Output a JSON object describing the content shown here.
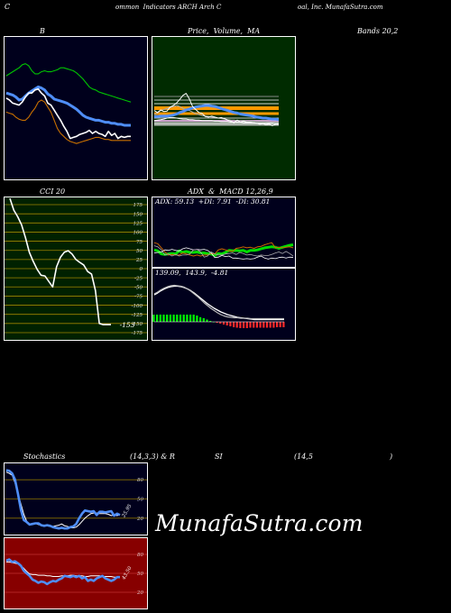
{
  "header": {
    "part1": "C",
    "part2": "ommon  Indicators ARCH Arch C",
    "part3": "oal, Inc. MunafaSutra.com"
  },
  "titles": {
    "b": "B",
    "price": "Price,  Volume,  MA",
    "bands": "Bands 20,2",
    "cci": "CCI 20",
    "adx": "ADX  &  MACD 12,26,9",
    "stoch_a": "Stochastics",
    "stoch_b": "(14,3,3) & R",
    "stoch_c": "SI",
    "stoch_d": "(14,5",
    "stoch_e": ")"
  },
  "adx_readout": "ADX: 59.13  +DI: 7.91  -DI: 30.81",
  "macd_readout": "139.09,  143.9,  -4.81",
  "cci_label": "-153",
  "stoch_label": "25.95",
  "rsi_label": "43.50",
  "watermark": "MunafaSutra.com",
  "colors": {
    "bg": "#000000",
    "bb_panel": "#00001c",
    "price_panel": "#002b00",
    "cci_panel": "#002100",
    "macd_panel": "#00001c",
    "rsi_panel": "#870000",
    "green_line": "#00c400",
    "blue_line": "#4f8ef7",
    "orange_line": "#c87000"
  },
  "chart_data": [
    {
      "type": "line",
      "name": "bollinger",
      "x": [
        1,
        2,
        3,
        4,
        5,
        6,
        7,
        8,
        9,
        10,
        11,
        12,
        13,
        14,
        15,
        16,
        17,
        18,
        19,
        20,
        21,
        22,
        23,
        24,
        25,
        26,
        27,
        28,
        29,
        30,
        31,
        32,
        33,
        34,
        35,
        36,
        37,
        38,
        39,
        40
      ],
      "series": [
        {
          "values": [
            74,
            76,
            78,
            80,
            82,
            85,
            86,
            84,
            79,
            76,
            76,
            78,
            79,
            78,
            78,
            79,
            80,
            82,
            82,
            81,
            80,
            79,
            77,
            74,
            71,
            67,
            63,
            61,
            60,
            58,
            57,
            56,
            55,
            54,
            53,
            52,
            51,
            50,
            49,
            48
          ]
        },
        {
          "values": [
            57,
            56,
            55,
            53,
            50,
            51,
            54,
            57,
            59,
            61,
            63,
            62,
            60,
            56,
            54,
            51,
            50,
            49,
            48,
            47,
            45,
            43,
            41,
            38,
            35,
            33,
            32,
            31,
            30,
            30,
            29,
            28,
            28,
            27,
            27,
            26,
            26,
            25,
            25,
            25
          ]
        },
        {
          "values": [
            38,
            37,
            36,
            33,
            31,
            30,
            30,
            33,
            38,
            42,
            48,
            50,
            48,
            43,
            38,
            30,
            22,
            17,
            14,
            11,
            9,
            8,
            7,
            8,
            9,
            10,
            11,
            12,
            13,
            13,
            12,
            11,
            11,
            10,
            10,
            10,
            10,
            10,
            10,
            10
          ]
        },
        {
          "values": [
            52,
            50,
            47,
            46,
            45,
            48,
            53,
            57,
            57,
            60,
            61,
            57,
            54,
            47,
            45,
            40,
            35,
            30,
            24,
            19,
            12,
            13,
            14,
            16,
            17,
            18,
            20,
            17,
            19,
            17,
            16,
            14,
            19,
            15,
            17,
            12,
            14,
            13,
            14,
            14
          ]
        }
      ],
      "ylim": [
        0,
        100
      ]
    },
    {
      "type": "line",
      "name": "price-volume-ma",
      "x": [
        1,
        2,
        3,
        4,
        5,
        6,
        7,
        8,
        9,
        10,
        11,
        12,
        13,
        14,
        15,
        16,
        17,
        18,
        19,
        20,
        21,
        22,
        23,
        24,
        25,
        26,
        27,
        28,
        29,
        30,
        31,
        32,
        33,
        34,
        35,
        36,
        37,
        38,
        39,
        40
      ],
      "series": [
        {
          "values": [
            32,
            35,
            40,
            42,
            44,
            46,
            48,
            50,
            48,
            44,
            42,
            40,
            37,
            34,
            32,
            30,
            29,
            28,
            27,
            26,
            25,
            24,
            23,
            22,
            21,
            21,
            20,
            20,
            20,
            19,
            19,
            19,
            18,
            18,
            18,
            18,
            17,
            17,
            17,
            17
          ]
        },
        {
          "values": [
            28,
            28,
            29,
            29,
            29,
            30,
            31,
            33,
            36,
            38,
            41,
            43,
            45,
            47,
            48,
            49,
            50,
            50,
            49,
            48,
            46,
            44,
            42,
            40,
            38,
            36,
            35,
            33,
            32,
            31,
            30,
            29,
            27,
            26,
            25,
            25,
            24,
            23,
            23,
            22
          ]
        },
        {
          "values": [
            20,
            21,
            22,
            23,
            25,
            26,
            26,
            25,
            24,
            23,
            23,
            22,
            22,
            21,
            21,
            20,
            20,
            20,
            20,
            19,
            19,
            18,
            18,
            18,
            17,
            17,
            17,
            17,
            16,
            16,
            16,
            16,
            15,
            15,
            15,
            15,
            15,
            15,
            14,
            14
          ]
        },
        {
          "values": [
            40,
            36,
            41,
            38,
            39,
            47,
            50,
            55,
            62,
            70,
            74,
            63,
            48,
            42,
            36,
            34,
            28,
            27,
            29,
            27,
            25,
            26,
            24,
            21,
            19,
            16,
            21,
            17,
            19,
            17,
            17,
            16,
            15,
            13,
            14,
            12,
            13,
            10,
            13,
            13
          ]
        }
      ],
      "ylim": [
        0,
        100
      ]
    },
    {
      "type": "line",
      "name": "cci",
      "x": [
        1,
        2,
        3,
        4,
        5,
        6,
        7,
        8,
        9,
        10,
        11,
        12,
        13,
        14,
        15,
        16,
        17,
        18,
        19,
        20,
        21,
        22,
        23,
        24,
        25,
        26,
        27
      ],
      "values": [
        192,
        160,
        142,
        120,
        85,
        45,
        20,
        -2,
        -18,
        -20,
        -35,
        -50,
        5,
        31,
        45,
        49,
        40,
        25,
        17,
        10,
        -8,
        -15,
        -60,
        -150,
        -153,
        -153,
        -153
      ],
      "yticks": [
        175,
        150,
        125,
        100,
        75,
        50,
        25,
        0,
        -25,
        -50,
        -75,
        -100,
        -125,
        -150,
        -175
      ],
      "ylim": [
        -180,
        180
      ]
    },
    {
      "type": "line",
      "name": "adx-di",
      "x": [
        1,
        2,
        3,
        4,
        5,
        6,
        7,
        8,
        9,
        10,
        11,
        12,
        13,
        14,
        15,
        16,
        17,
        18,
        19,
        20,
        21,
        22,
        23,
        24,
        25,
        26,
        27,
        28,
        29,
        30,
        31,
        32,
        33,
        34,
        35,
        36,
        37,
        38,
        39,
        40
      ],
      "series": [
        {
          "values": [
            26,
            24,
            18,
            17,
            18,
            19,
            18,
            24,
            21,
            23,
            21,
            21,
            22,
            20,
            20,
            19,
            18,
            15,
            19,
            18,
            21,
            25,
            24,
            25,
            24,
            25,
            22,
            25,
            25,
            26,
            28,
            30,
            31,
            32,
            31,
            29,
            31,
            33,
            35,
            36
          ]
        },
        {
          "values": [
            40,
            38,
            30,
            22,
            16,
            17,
            16,
            16,
            20,
            18,
            16,
            14,
            16,
            14,
            16,
            16,
            19,
            18,
            26,
            28,
            26,
            24,
            23,
            29,
            30,
            32,
            30,
            31,
            29,
            32,
            33,
            36,
            38,
            40,
            30,
            31,
            30,
            31,
            32,
            30
          ]
        },
        {
          "values": [
            20,
            21,
            22,
            26,
            25,
            27,
            25,
            24,
            28,
            30,
            28,
            26,
            27,
            26,
            27,
            25,
            20,
            11,
            12,
            15,
            13,
            14,
            10,
            10,
            9,
            8,
            9,
            8,
            9,
            12,
            14,
            10,
            8,
            10,
            9,
            11,
            12,
            10,
            12,
            11
          ]
        },
        {
          "values": [
            34,
            32,
            26,
            16,
            18,
            14,
            17,
            14,
            16,
            16,
            18,
            26,
            27,
            22,
            12,
            14,
            22,
            18,
            16,
            16,
            18,
            19,
            20,
            17,
            21,
            19,
            16,
            17,
            15,
            14,
            16,
            15,
            15,
            17,
            20,
            22,
            19,
            23,
            19,
            14
          ]
        }
      ],
      "ylim": [
        0,
        100
      ]
    },
    {
      "type": "line",
      "name": "macd",
      "x": [
        1,
        2,
        3,
        4,
        5,
        6,
        7,
        8,
        9,
        10,
        11,
        12,
        13,
        14,
        15,
        16,
        17,
        18,
        19,
        20,
        21,
        22,
        23,
        24,
        25,
        26,
        27,
        28,
        29,
        30,
        31,
        32,
        33,
        34,
        35,
        36,
        37,
        38,
        39,
        40
      ],
      "series": [
        {
          "values": [
            60,
            64,
            69,
            73,
            76,
            78,
            79,
            79,
            78,
            76,
            73,
            69,
            64,
            58,
            52,
            46,
            40,
            35,
            30,
            26,
            22,
            19,
            16,
            14,
            12,
            10,
            9,
            8,
            7,
            6,
            5,
            5,
            5,
            5,
            5,
            5,
            5,
            5,
            5,
            5
          ]
        },
        {
          "values": [
            62,
            66,
            71,
            75,
            78,
            80,
            81,
            80,
            79,
            77,
            73,
            68,
            62,
            56,
            49,
            42,
            36,
            30,
            25,
            20,
            16,
            13,
            11,
            10,
            9,
            9,
            8,
            8,
            8,
            7,
            7,
            7,
            7,
            7,
            7,
            7,
            7,
            7,
            7,
            7
          ]
        },
        {
          "values": [
            16,
            16,
            16,
            16,
            16,
            16,
            16,
            16,
            16,
            16,
            16,
            16,
            16,
            14,
            10,
            8,
            5,
            2,
            0,
            -2,
            -4,
            -6,
            -8,
            -10,
            -12,
            -13,
            -14,
            -14,
            -14,
            -13,
            -13,
            -13,
            -13,
            -13,
            -13,
            -13,
            -13,
            -12,
            -12,
            -12
          ]
        }
      ],
      "ylim": [
        -20,
        90
      ]
    },
    {
      "type": "line",
      "name": "stochastics",
      "x": [
        1,
        2,
        3,
        4,
        5,
        6,
        7,
        8,
        9,
        10,
        11,
        12,
        13,
        14,
        15,
        16,
        17,
        18,
        19,
        20,
        21,
        22,
        23,
        24,
        25,
        26,
        27,
        28,
        29,
        30,
        31,
        32,
        33,
        34,
        35,
        36,
        37,
        38,
        39,
        40
      ],
      "series": [
        {
          "values": [
            92,
            90,
            87,
            75,
            58,
            42,
            26,
            15,
            11,
            11,
            12,
            10,
            9,
            9,
            8,
            7,
            7,
            8,
            9,
            11,
            8,
            7,
            5,
            5,
            6,
            10,
            15,
            20,
            24,
            27,
            28,
            28,
            27,
            27,
            27,
            26,
            24,
            25,
            24,
            26
          ]
        },
        {
          "values": [
            95,
            94,
            90,
            80,
            58,
            33,
            17,
            14,
            10,
            11,
            12,
            12,
            9,
            8,
            9,
            8,
            6,
            5,
            4,
            5,
            4,
            4,
            6,
            7,
            11,
            20,
            27,
            32,
            31,
            30,
            31,
            25,
            30,
            30,
            29,
            30,
            31,
            24,
            27,
            25
          ]
        }
      ],
      "yticks": [
        80,
        50,
        20
      ],
      "ylim": [
        0,
        100
      ]
    },
    {
      "type": "line",
      "name": "rsi",
      "x": [
        1,
        2,
        3,
        4,
        5,
        6,
        7,
        8,
        9,
        10,
        11,
        12,
        13,
        14,
        15,
        16,
        17,
        18,
        19,
        20,
        21,
        22,
        23,
        24,
        25,
        26,
        27,
        28,
        29,
        30,
        31,
        32,
        33,
        34,
        35,
        36,
        37,
        38,
        39,
        40
      ],
      "series": [
        {
          "values": [
            68,
            68,
            67,
            66,
            65,
            62,
            58,
            53,
            49,
            48,
            48,
            47,
            47,
            47,
            46,
            46,
            45,
            45,
            45,
            46,
            46,
            46,
            47,
            47,
            46,
            46,
            46,
            45,
            45,
            46,
            46,
            46,
            46,
            45,
            45,
            45,
            45,
            44,
            44,
            44
          ]
        },
        {
          "values": [
            70,
            72,
            68,
            69,
            66,
            62,
            54,
            50,
            46,
            40,
            38,
            35,
            37,
            36,
            33,
            36,
            38,
            37,
            40,
            42,
            46,
            45,
            44,
            46,
            44,
            46,
            42,
            44,
            38,
            40,
            38,
            42,
            44,
            46,
            42,
            40,
            38,
            40,
            44,
            44
          ]
        }
      ],
      "yticks": [
        80,
        50,
        20
      ],
      "ylim": [
        0,
        100
      ]
    }
  ]
}
